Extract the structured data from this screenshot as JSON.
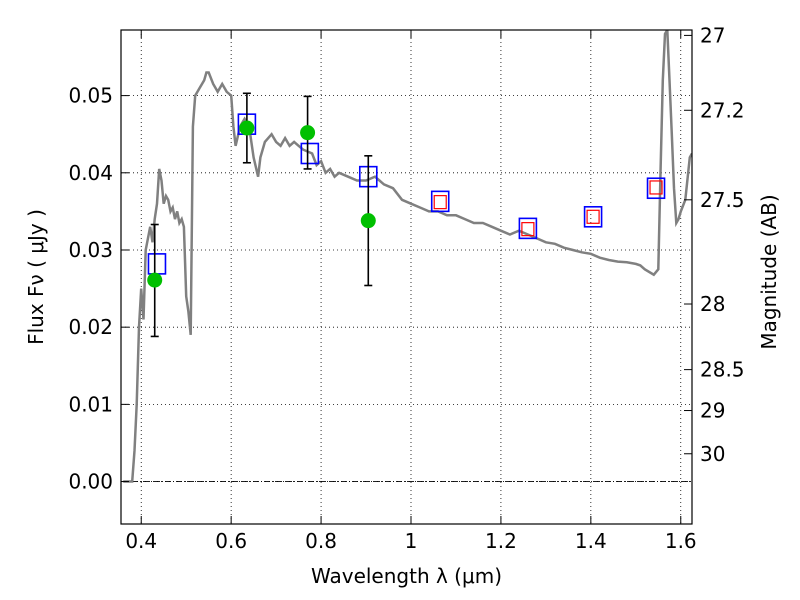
{
  "chart_data": {
    "type": "scatter",
    "xlabel": "Wavelength  λ (μm)",
    "ylabel": "Flux  Fν  ( μJy )",
    "ylabel_right": "Magnitude (AB)",
    "xlim": [
      0.355,
      1.625
    ],
    "ylim": [
      -0.0055,
      0.0585
    ],
    "grid": true,
    "x_ticks": [
      0.4,
      0.6,
      0.8,
      1.0,
      1.2,
      1.4,
      1.6
    ],
    "x_tick_labels": [
      "0.4",
      "0.6",
      "0.8",
      "1",
      "1.2",
      "1.4",
      "1.6"
    ],
    "y_ticks": [
      0.0,
      0.01,
      0.02,
      0.03,
      0.04,
      0.05
    ],
    "y_tick_labels": [
      "0.00",
      "0.01",
      "0.02",
      "0.03",
      "0.04",
      "0.05"
    ],
    "right_ticks": [
      {
        "label": "27",
        "flux": 0.0578
      },
      {
        "label": "27.2",
        "flux": 0.0481
      },
      {
        "label": "27.5",
        "flux": 0.0365
      },
      {
        "label": "28",
        "flux": 0.023
      },
      {
        "label": "28.5",
        "flux": 0.0145
      },
      {
        "label": "29",
        "flux": 0.0092
      },
      {
        "label": "30",
        "flux": 0.0036
      }
    ],
    "model_sed": {
      "color": "#808080",
      "points": [
        [
          0.36,
          0.0
        ],
        [
          0.38,
          0.0
        ],
        [
          0.385,
          0.004
        ],
        [
          0.39,
          0.01
        ],
        [
          0.395,
          0.02
        ],
        [
          0.4,
          0.025
        ],
        [
          0.405,
          0.021
        ],
        [
          0.41,
          0.03
        ],
        [
          0.42,
          0.033
        ],
        [
          0.425,
          0.031
        ],
        [
          0.43,
          0.034
        ],
        [
          0.435,
          0.036
        ],
        [
          0.44,
          0.0405
        ],
        [
          0.445,
          0.039
        ],
        [
          0.45,
          0.036
        ],
        [
          0.455,
          0.037
        ],
        [
          0.46,
          0.0365
        ],
        [
          0.465,
          0.035
        ],
        [
          0.47,
          0.0355
        ],
        [
          0.475,
          0.034
        ],
        [
          0.48,
          0.035
        ],
        [
          0.485,
          0.0335
        ],
        [
          0.49,
          0.034
        ],
        [
          0.495,
          0.033
        ],
        [
          0.5,
          0.024
        ],
        [
          0.505,
          0.022
        ],
        [
          0.51,
          0.019
        ],
        [
          0.515,
          0.046
        ],
        [
          0.52,
          0.05
        ],
        [
          0.53,
          0.051
        ],
        [
          0.54,
          0.052
        ],
        [
          0.545,
          0.053
        ],
        [
          0.55,
          0.053
        ],
        [
          0.56,
          0.0515
        ],
        [
          0.57,
          0.0505
        ],
        [
          0.58,
          0.0515
        ],
        [
          0.59,
          0.0505
        ],
        [
          0.6,
          0.05
        ],
        [
          0.605,
          0.046
        ],
        [
          0.61,
          0.0435
        ],
        [
          0.62,
          0.046
        ],
        [
          0.63,
          0.047
        ],
        [
          0.64,
          0.046
        ],
        [
          0.65,
          0.042
        ],
        [
          0.66,
          0.0395
        ],
        [
          0.665,
          0.042
        ],
        [
          0.675,
          0.044
        ],
        [
          0.69,
          0.045
        ],
        [
          0.7,
          0.044
        ],
        [
          0.71,
          0.0435
        ],
        [
          0.72,
          0.0445
        ],
        [
          0.73,
          0.0435
        ],
        [
          0.74,
          0.044
        ],
        [
          0.75,
          0.0435
        ],
        [
          0.76,
          0.043
        ],
        [
          0.78,
          0.0425
        ],
        [
          0.79,
          0.041
        ],
        [
          0.8,
          0.0415
        ],
        [
          0.81,
          0.04
        ],
        [
          0.82,
          0.0405
        ],
        [
          0.83,
          0.0395
        ],
        [
          0.84,
          0.04
        ],
        [
          0.86,
          0.0395
        ],
        [
          0.88,
          0.039
        ],
        [
          0.9,
          0.039
        ],
        [
          0.92,
          0.0395
        ],
        [
          0.94,
          0.0385
        ],
        [
          0.96,
          0.038
        ],
        [
          0.98,
          0.0365
        ],
        [
          1.0,
          0.036
        ],
        [
          1.02,
          0.0355
        ],
        [
          1.04,
          0.035
        ],
        [
          1.06,
          0.035
        ],
        [
          1.08,
          0.0345
        ],
        [
          1.1,
          0.0345
        ],
        [
          1.12,
          0.034
        ],
        [
          1.14,
          0.0335
        ],
        [
          1.16,
          0.0335
        ],
        [
          1.18,
          0.033
        ],
        [
          1.2,
          0.0325
        ],
        [
          1.22,
          0.032
        ],
        [
          1.24,
          0.0325
        ],
        [
          1.26,
          0.032
        ],
        [
          1.28,
          0.0315
        ],
        [
          1.3,
          0.031
        ],
        [
          1.32,
          0.0308
        ],
        [
          1.34,
          0.0303
        ],
        [
          1.36,
          0.03
        ],
        [
          1.38,
          0.0297
        ],
        [
          1.4,
          0.0295
        ],
        [
          1.42,
          0.029
        ],
        [
          1.44,
          0.0287
        ],
        [
          1.46,
          0.0285
        ],
        [
          1.48,
          0.0284
        ],
        [
          1.5,
          0.0282
        ],
        [
          1.51,
          0.028
        ],
        [
          1.52,
          0.0275
        ],
        [
          1.54,
          0.0268
        ],
        [
          1.55,
          0.0275
        ],
        [
          1.555,
          0.04
        ],
        [
          1.56,
          0.052
        ],
        [
          1.565,
          0.058
        ],
        [
          1.57,
          0.0585
        ],
        [
          1.575,
          0.052
        ],
        [
          1.58,
          0.045
        ],
        [
          1.585,
          0.038
        ],
        [
          1.59,
          0.0335
        ],
        [
          1.595,
          0.034
        ],
        [
          1.6,
          0.035
        ],
        [
          1.61,
          0.0365
        ],
        [
          1.62,
          0.042
        ],
        [
          1.625,
          0.0425
        ]
      ]
    },
    "series": [
      {
        "marker": "blue-open-square",
        "color": "#0000ff",
        "points": [
          {
            "x": 0.435,
            "y": 0.0282
          },
          {
            "x": 0.635,
            "y": 0.0463
          },
          {
            "x": 0.775,
            "y": 0.0425
          },
          {
            "x": 0.905,
            "y": 0.0395
          },
          {
            "x": 1.065,
            "y": 0.0363
          },
          {
            "x": 1.26,
            "y": 0.0328
          },
          {
            "x": 1.405,
            "y": 0.0343
          },
          {
            "x": 1.545,
            "y": 0.038
          }
        ]
      },
      {
        "marker": "red-open-square",
        "color": "#ff0000",
        "points": [
          {
            "x": 1.065,
            "y": 0.0362
          },
          {
            "x": 1.26,
            "y": 0.0327
          },
          {
            "x": 1.405,
            "y": 0.0343
          },
          {
            "x": 1.545,
            "y": 0.0381
          }
        ]
      },
      {
        "marker": "green-filled-circle",
        "color": "#00c000",
        "points": [
          {
            "x": 0.43,
            "y": 0.0261,
            "yerr": [
              0.0188,
              0.0333
            ]
          },
          {
            "x": 0.635,
            "y": 0.0458,
            "yerr": [
              0.0413,
              0.0503
            ]
          },
          {
            "x": 0.77,
            "y": 0.0452,
            "yerr": [
              0.0405,
              0.0499
            ]
          },
          {
            "x": 0.905,
            "y": 0.0338,
            "yerr": [
              0.0254,
              0.0422
            ]
          }
        ]
      }
    ]
  }
}
